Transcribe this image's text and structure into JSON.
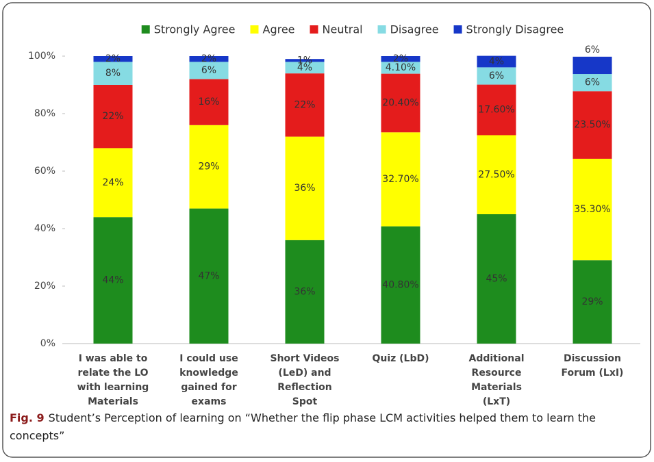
{
  "chart_data": {
    "type": "stacked_bar",
    "categories": [
      "I was able to relate the LO with learning Materials",
      "I could use knowledge gained for exams",
      "Short Videos (LeD) and Reflection Spot",
      "Quiz (LbD)",
      "Additional Resource Materials (LxT)",
      "Discussion Forum (LxI)"
    ],
    "series": [
      {
        "name": "Strongly Agree",
        "color": "#1e8c1e",
        "values": [
          44,
          47,
          36,
          40.8,
          45,
          29
        ],
        "value_labels": [
          "44%",
          "47%",
          "36%",
          "40.80%",
          "45%",
          "29%"
        ]
      },
      {
        "name": "Agree",
        "color": "#ffff00",
        "values": [
          24,
          29,
          36,
          32.7,
          27.5,
          35.3
        ],
        "value_labels": [
          "24%",
          "29%",
          "36%",
          "32.70%",
          "27.50%",
          "35.30%"
        ]
      },
      {
        "name": "Neutral",
        "color": "#e41c1c",
        "values": [
          22,
          16,
          22,
          20.4,
          17.6,
          23.5
        ],
        "value_labels": [
          "22%",
          "16%",
          "22%",
          "20.40%",
          "17.60%",
          "23.50%"
        ]
      },
      {
        "name": "Disagree",
        "color": "#86dbe3",
        "values": [
          8,
          6,
          4,
          4.1,
          6,
          6
        ],
        "value_labels": [
          "8%",
          "6%",
          "4%",
          "4.10%",
          "6%",
          "6%"
        ]
      },
      {
        "name": "Strongly Disagree",
        "color": "#1637c8",
        "values": [
          2,
          2,
          1,
          2,
          4,
          6
        ],
        "value_labels": [
          "2%",
          "2%",
          "1%",
          "2%",
          "4%",
          "6%"
        ]
      }
    ],
    "ylim": [
      0,
      100
    ],
    "yticks": [
      {
        "value": 0,
        "label": "0%"
      },
      {
        "value": 20,
        "label": "20%"
      },
      {
        "value": 40,
        "label": "40%"
      },
      {
        "value": 60,
        "label": "60%"
      },
      {
        "value": 80,
        "label": "80%"
      },
      {
        "value": 100,
        "label": "100%"
      }
    ],
    "legend": "top"
  },
  "caption": {
    "label": "Fig. 9",
    "text": "Student’s Perception of learning on “Whether the flip phase LCM activities helped them to learn the concepts”"
  }
}
